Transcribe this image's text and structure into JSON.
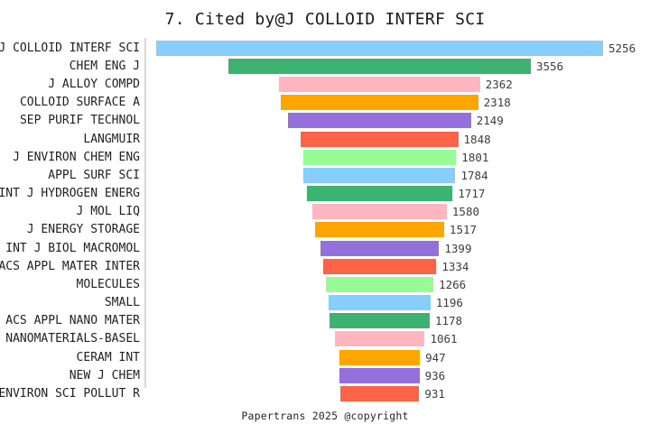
{
  "title": "7. Cited by@J COLLOID INTERF SCI",
  "footer": "Papertrans 2025 @copyright",
  "colors": {
    "background": "#ffffff",
    "axis_line": "#d8d8d8",
    "title_text": "#1a1a1a",
    "label_text": "#1f1f1f",
    "value_text": "#3d3d3d",
    "palette": [
      "#87CEFA",
      "#3CB371",
      "#FFB6C1",
      "#FFA500",
      "#9370DB",
      "#FF6347",
      "#98FB98"
    ]
  },
  "chart_data": {
    "type": "bar",
    "orientation": "horizontal",
    "layout": "centered-funnel",
    "title": "7. Cited by@J COLLOID INTERF SCI",
    "xlabel": "",
    "ylabel": "",
    "grid": false,
    "legend": null,
    "value_labels_shown": true,
    "max_value": 5256,
    "categories": [
      "J COLLOID INTERF SCI",
      "CHEM ENG J",
      "J ALLOY COMPD",
      "COLLOID SURFACE A",
      "SEP PURIF TECHNOL",
      "LANGMUIR",
      "J ENVIRON CHEM ENG",
      "APPL SURF SCI",
      "INT J HYDROGEN ENERG",
      "J MOL LIQ",
      "J ENERGY STORAGE",
      "INT J BIOL MACROMOL",
      "ACS APPL MATER INTER",
      "MOLECULES",
      "SMALL",
      "ACS APPL NANO MATER",
      "NANOMATERIALS-BASEL",
      "CERAM INT",
      "NEW J CHEM",
      "ENVIRON SCI POLLUT R"
    ],
    "values": [
      5256,
      3556,
      2362,
      2318,
      2149,
      1848,
      1801,
      1784,
      1717,
      1580,
      1517,
      1399,
      1334,
      1266,
      1196,
      1178,
      1061,
      947,
      936,
      931
    ],
    "bar_color_cycle_note": "each bar colored from palette in repeating order"
  }
}
